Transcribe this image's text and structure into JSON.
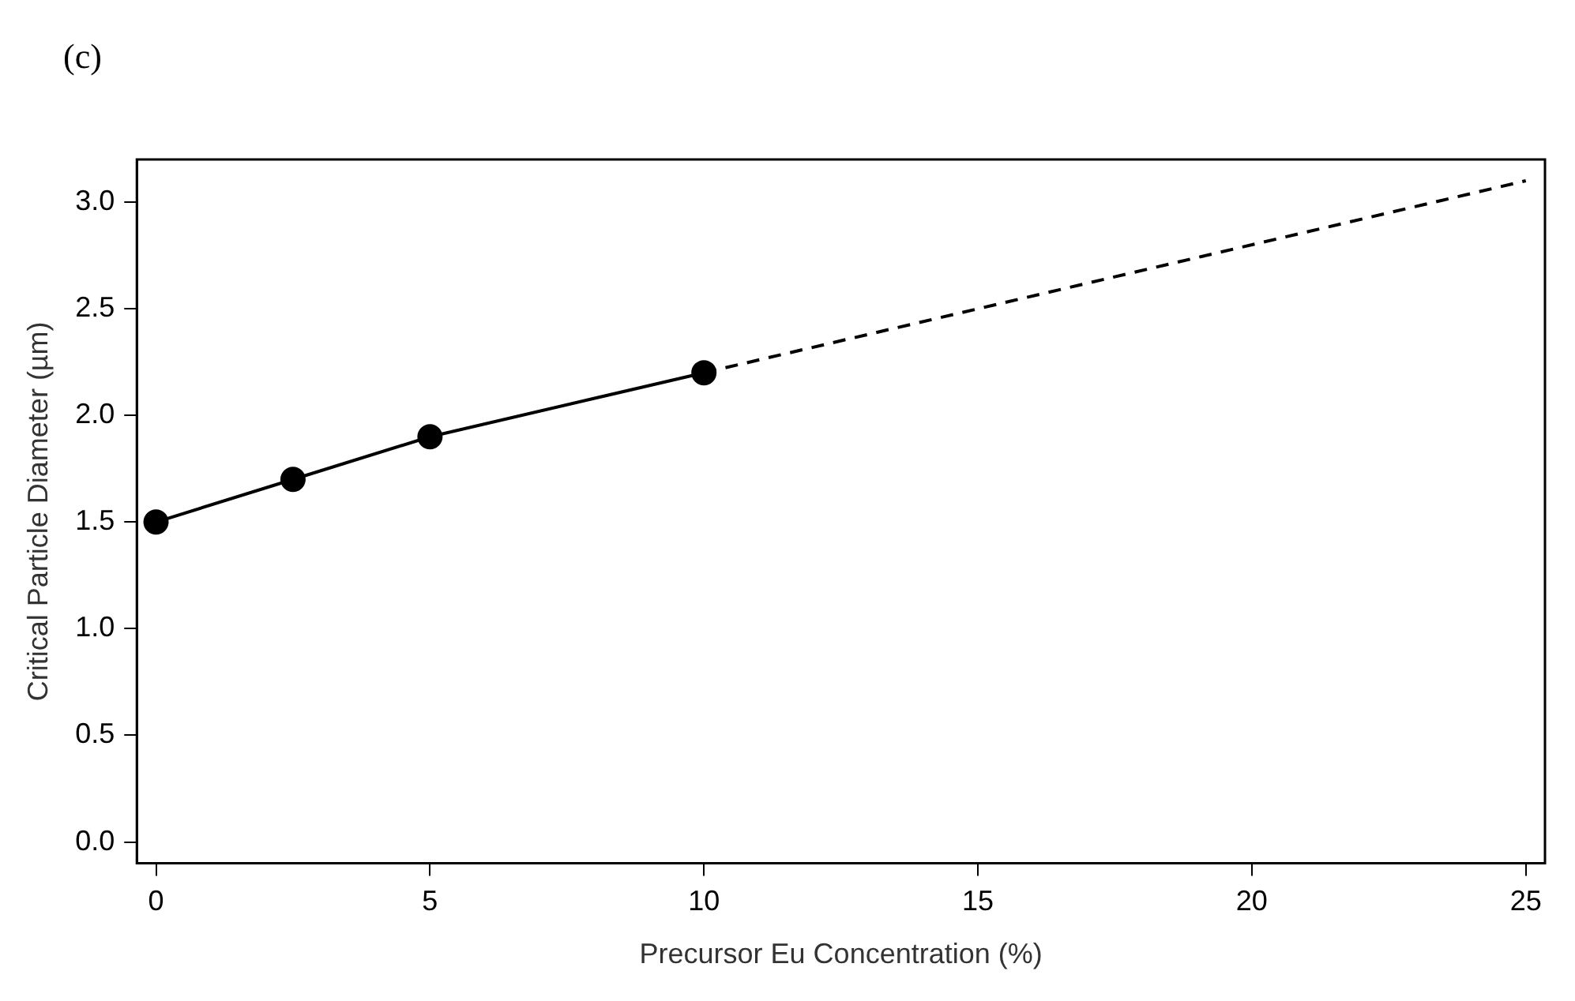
{
  "chart_data": {
    "type": "line",
    "annotations": [
      "(c)"
    ],
    "xlabel": "Precursor Eu Concentration (%)",
    "ylabel": "Critical Particle Diameter (µm)",
    "series": [
      {
        "color": "#000000",
        "x": [
          0,
          2.5,
          5,
          10
        ],
        "values": [
          1.5,
          1.7,
          1.9,
          2.2
        ],
        "marker": "circle",
        "line_style": "solid"
      },
      {
        "color": "#000000",
        "x": [
          10,
          25
        ],
        "values": [
          2.2,
          3.1
        ],
        "marker": "none",
        "line_style": "dashed"
      }
    ],
    "xlim": [
      -0.35,
      25.35
    ],
    "xticks": [
      0,
      5,
      10,
      15,
      20,
      25
    ],
    "ylim": [
      -0.1,
      3.2
    ],
    "yticks": [
      {
        "value": 0,
        "label": "0.0"
      },
      0.5,
      {
        "value": 1,
        "label": "1.0"
      },
      1.5,
      {
        "value": 2,
        "label": "2.0"
      },
      2.5,
      {
        "value": 3,
        "label": "3.0"
      }
    ],
    "grid": false,
    "legend": false
  }
}
